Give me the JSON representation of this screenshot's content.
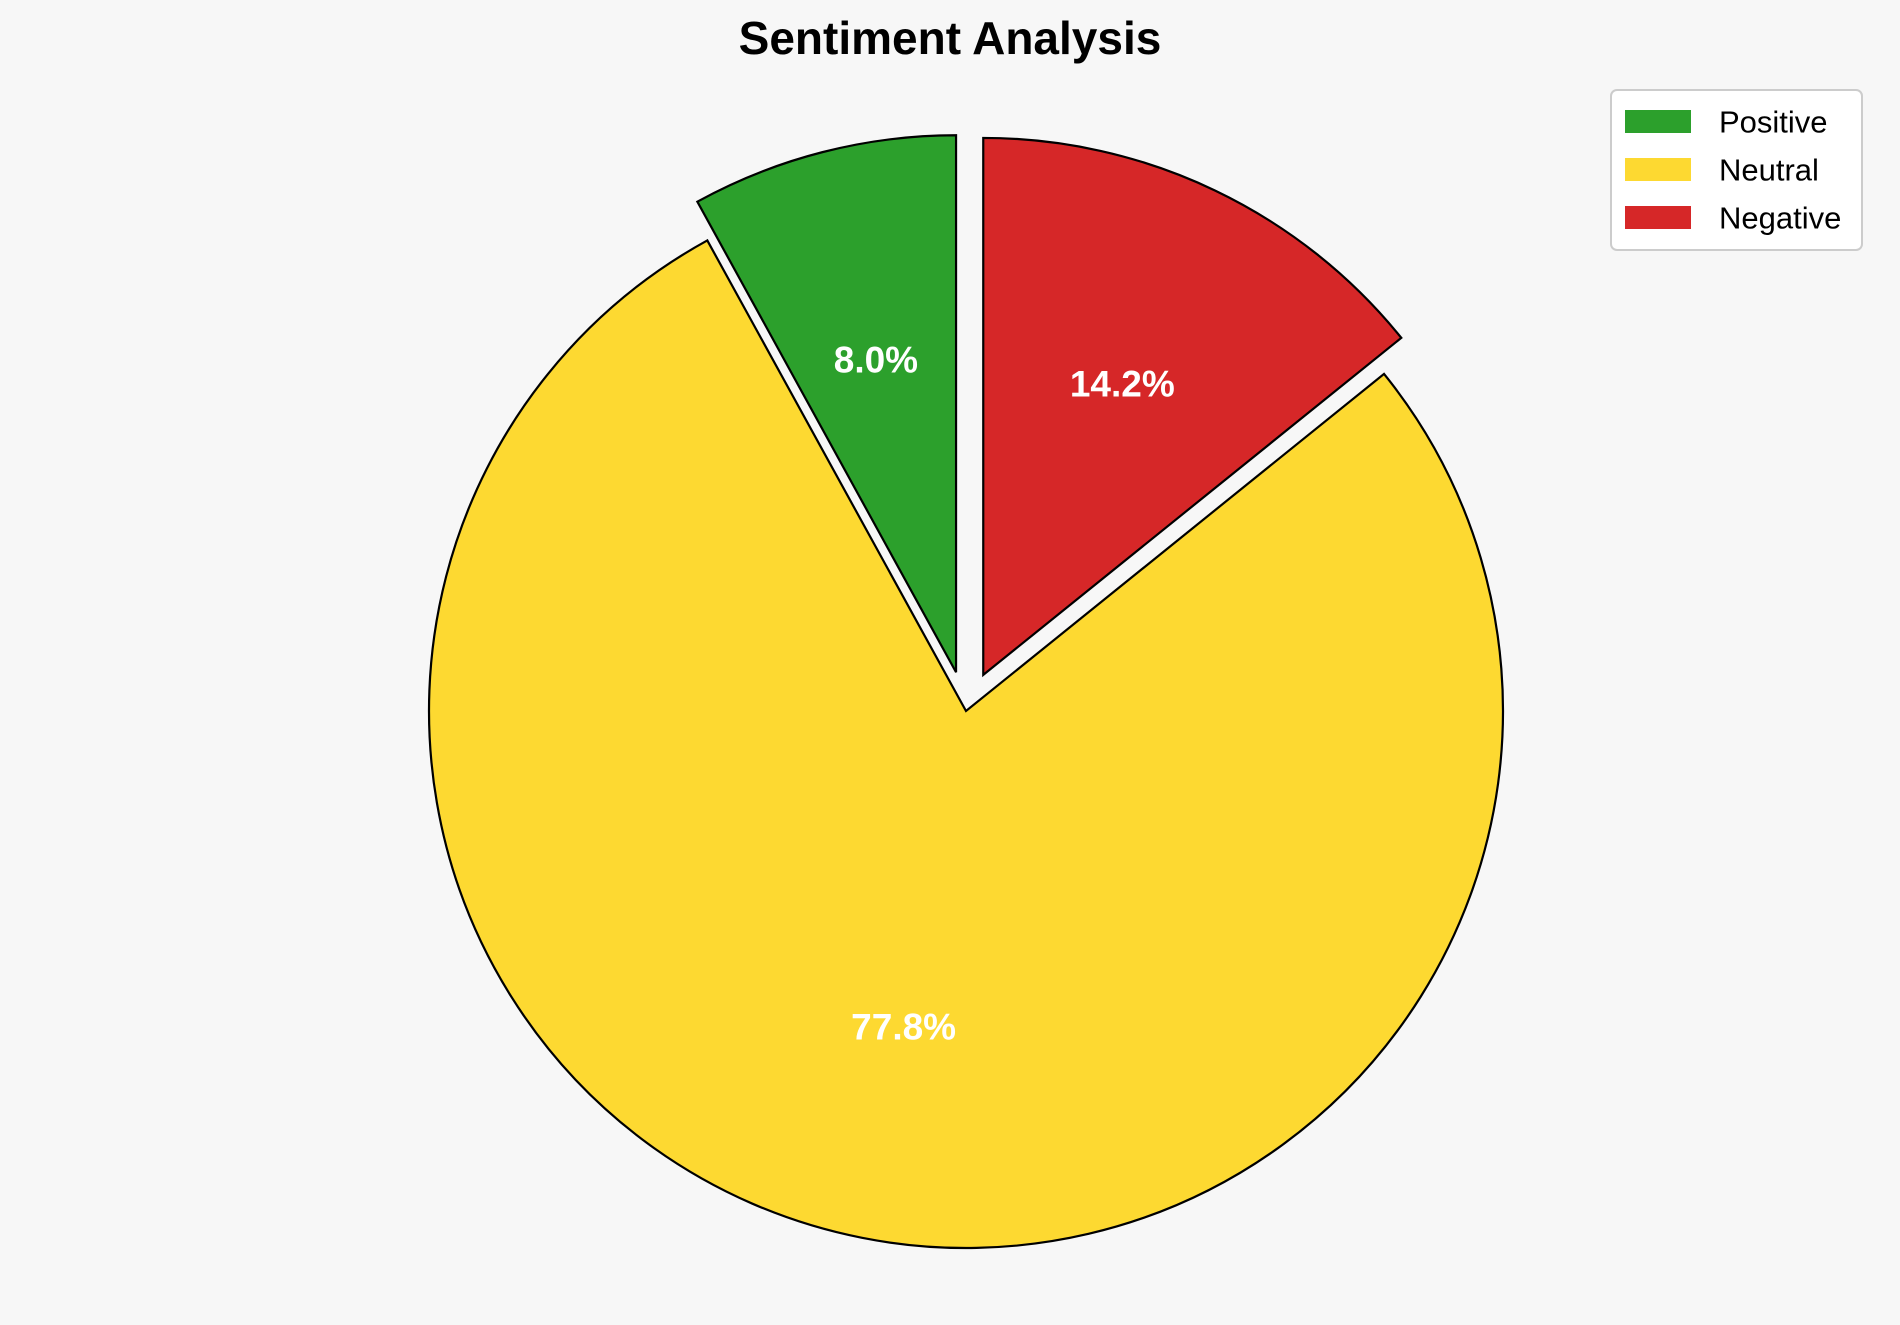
{
  "chart_data": {
    "type": "pie",
    "title": "Sentiment Analysis",
    "start_angle_deg": 90,
    "direction": "counterclockwise",
    "exploded": [
      "Positive",
      "Negative"
    ],
    "legend_position": "top-right",
    "edge_color": "#000000",
    "slices": [
      {
        "label": "Positive",
        "value": 8.0,
        "display": "8.0%",
        "color": "#2ca02c"
      },
      {
        "label": "Neutral",
        "value": 77.8,
        "display": "77.8%",
        "color": "#fdd931"
      },
      {
        "label": "Negative",
        "value": 14.2,
        "display": "14.2%",
        "color": "#d62728"
      }
    ]
  }
}
